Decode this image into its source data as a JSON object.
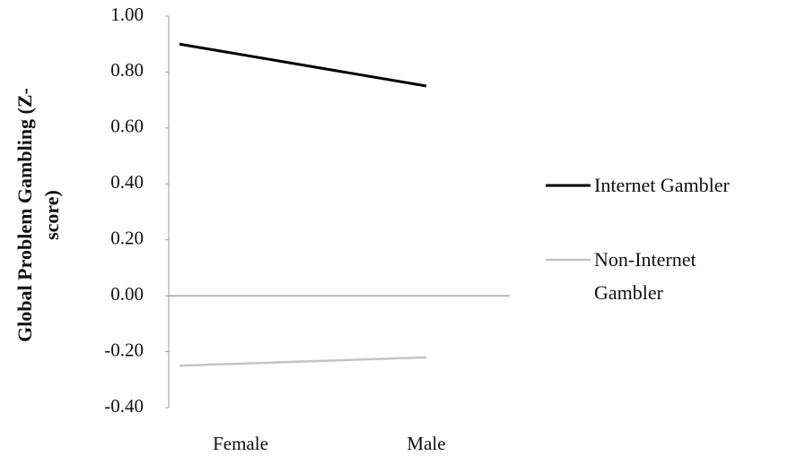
{
  "chart_data": {
    "type": "line",
    "y_label": "Global Problem Gambling (Z-score)",
    "categories": [
      "Female",
      "Male"
    ],
    "series": [
      {
        "name": "Internet Gambler",
        "color": "#000000",
        "values": [
          0.9,
          0.75
        ]
      },
      {
        "name": "Non-Internet Gambler",
        "color": "#c4c4c4",
        "values": [
          -0.25,
          -0.22
        ]
      }
    ],
    "ylim": [
      -0.4,
      1.0
    ],
    "yticks": [
      {
        "value": -0.4,
        "label": "-0.40"
      },
      {
        "value": -0.2,
        "label": "-0.20"
      },
      {
        "value": 0,
        "label": "0.00"
      },
      {
        "value": 0.2,
        "label": "0.20"
      },
      {
        "value": 0.4,
        "label": "0.40"
      },
      {
        "value": 0.6,
        "label": "0.60"
      },
      {
        "value": 0.8,
        "label": "0.80"
      },
      {
        "value": 1.0,
        "label": "1.00"
      }
    ],
    "legend": "right"
  }
}
